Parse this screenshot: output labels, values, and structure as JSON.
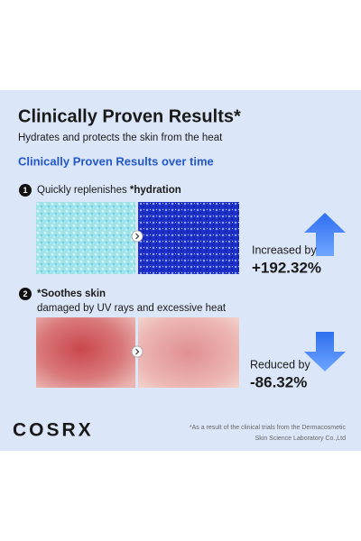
{
  "header": {
    "title": "Clinically Proven Results*",
    "subtitle": "Hydrates and protects the skin from the heat"
  },
  "section_title": "Clinically Proven Results over time",
  "items": [
    {
      "number": "1",
      "text": "Quickly replenishes ",
      "highlight": "*hydration",
      "result_label": "Increased by",
      "result_value": "+192.32%"
    },
    {
      "number": "2",
      "highlight": "*Soothes skin",
      "text": "damaged by UV rays and excessive heat",
      "result_label": "Reduced by",
      "result_value": "-86.32%"
    }
  ],
  "footer": {
    "brand": "COSRX",
    "note_line1": "*As a result of the clinical trials from the Dermacosmetic",
    "note_line2": "Skin Science Laboratory Co.,Ltd"
  }
}
